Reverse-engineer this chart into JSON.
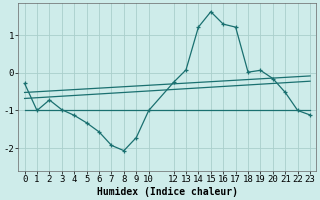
{
  "xlabel": "Humidex (Indice chaleur)",
  "background_color": "#ceecea",
  "grid_color": "#aacfcc",
  "line_color": "#1a7070",
  "xlim": [
    -0.5,
    23.5
  ],
  "ylim": [
    -2.6,
    1.85
  ],
  "yticks": [
    -2,
    -1,
    0,
    1
  ],
  "xticks": [
    0,
    1,
    2,
    3,
    4,
    5,
    6,
    7,
    8,
    9,
    10,
    12,
    13,
    14,
    15,
    16,
    17,
    18,
    19,
    20,
    21,
    22,
    23
  ],
  "curve_x": [
    0,
    1,
    2,
    3,
    4,
    5,
    6,
    7,
    8,
    9,
    10,
    12,
    13,
    14,
    15,
    16,
    17,
    18,
    19,
    20,
    21,
    22,
    23
  ],
  "curve_y": [
    -0.28,
    -1.0,
    -0.72,
    -0.98,
    -1.13,
    -1.33,
    -1.57,
    -1.93,
    -2.07,
    -1.72,
    -1.0,
    -0.25,
    0.08,
    1.22,
    1.63,
    1.3,
    1.22,
    0.02,
    0.07,
    -0.15,
    -0.52,
    -1.0,
    -1.12
  ],
  "line1_x": [
    0,
    23
  ],
  "line1_y": [
    -0.52,
    -0.08
  ],
  "line2_x": [
    0,
    23
  ],
  "line2_y": [
    -0.68,
    -0.22
  ],
  "line3_x": [
    0,
    23
  ],
  "line3_y": [
    -1.0,
    -1.0
  ],
  "font_size": 6.5
}
